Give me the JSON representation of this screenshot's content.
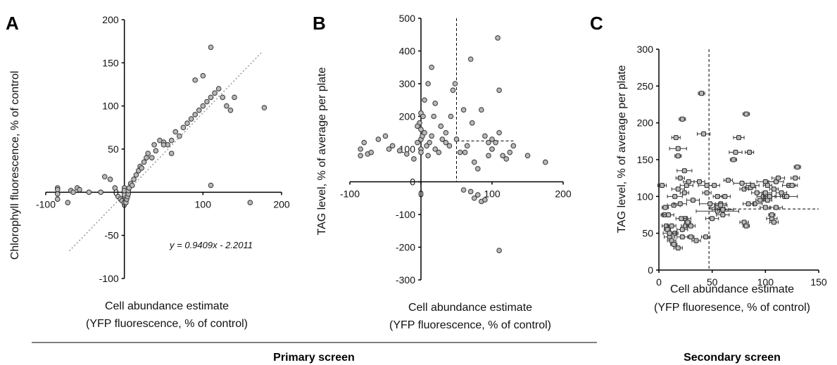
{
  "figure": {
    "left_group_label": "Primary screen",
    "right_group_label": "Secondary screen"
  },
  "chart_data": [
    {
      "panel": "A",
      "type": "scatter",
      "xlabel_line1": "Cell abundance estimate",
      "xlabel_line2": "(YFP fluorescence, % of control)",
      "ylabel": "Chlorophyll fluorescence, % of control",
      "xlim": [
        -100,
        200
      ],
      "ylim": [
        -100,
        200
      ],
      "x_ticks": [
        "-100",
        "0",
        "100",
        "200"
      ],
      "y_ticks": [
        "-100",
        "-50",
        "0",
        "50",
        "100",
        "150",
        "200"
      ],
      "x_tick_values": [
        -100,
        0,
        100,
        200
      ],
      "y_tick_values": [
        -100,
        -50,
        0,
        50,
        100,
        150,
        200
      ],
      "trendline": {
        "slope": 0.9409,
        "intercept": -2.2011,
        "x_range": [
          -70,
          175
        ]
      },
      "equation": "y = 0.9409x - 2.2011",
      "grid": false,
      "series": [
        {
          "x": [
            -85,
            -85,
            -85,
            -85,
            -72,
            -68,
            -65,
            -60,
            -57,
            -45,
            -30,
            -25,
            -18,
            -12,
            -8,
            -5,
            -3,
            0,
            0,
            0,
            0,
            0,
            0,
            2,
            2,
            3,
            4,
            5,
            5,
            6,
            8,
            10,
            12,
            15,
            18,
            20,
            22,
            25,
            28,
            30,
            35,
            38,
            40,
            45,
            50,
            55,
            60,
            65,
            70,
            75,
            80,
            85,
            90,
            95,
            100,
            105,
            110,
            115,
            120,
            125,
            130,
            135,
            140,
            110,
            100,
            90,
            60,
            50,
            110,
            178,
            160
          ],
          "y": [
            5,
            3,
            -2,
            -8,
            -12,
            2,
            0,
            5,
            3,
            0,
            0,
            18,
            15,
            5,
            -5,
            -8,
            -10,
            -12,
            -5,
            0,
            5,
            -3,
            2,
            -10,
            -12,
            -8,
            -5,
            -2,
            2,
            5,
            10,
            8,
            15,
            20,
            25,
            30,
            28,
            35,
            40,
            45,
            40,
            55,
            48,
            60,
            58,
            55,
            60,
            70,
            65,
            75,
            80,
            85,
            90,
            95,
            100,
            105,
            110,
            115,
            120,
            110,
            100,
            95,
            110,
            168,
            135,
            130,
            45,
            55,
            8,
            98,
            -12
          ]
        }
      ]
    },
    {
      "panel": "B",
      "type": "scatter",
      "xlabel_line1": "Cell abundance estimate",
      "xlabel_line2": "(YFP fluorescence, % of control)",
      "ylabel": "TAG level, % of average per plate",
      "xlim": [
        -100,
        200
      ],
      "ylim": [
        -300,
        500
      ],
      "x_ticks": [
        "-100",
        "0",
        "100",
        "200"
      ],
      "y_ticks": [
        "-300",
        "-200",
        "-100",
        "0",
        "100",
        "200",
        "300",
        "400",
        "500"
      ],
      "x_tick_values": [
        -100,
        0,
        100,
        200
      ],
      "y_tick_values": [
        -300,
        -200,
        -100,
        0,
        100,
        200,
        300,
        400,
        500
      ],
      "threshold_x": 50,
      "threshold_y": 125,
      "threshold_y_x_range": [
        50,
        130
      ],
      "grid": false,
      "series": [
        {
          "x": [
            -85,
            -85,
            -80,
            -75,
            -70,
            -60,
            -50,
            -45,
            -40,
            -30,
            -20,
            -10,
            -5,
            -2,
            0,
            0,
            0,
            0,
            0,
            2,
            3,
            5,
            5,
            8,
            10,
            10,
            12,
            15,
            18,
            20,
            20,
            25,
            28,
            30,
            35,
            40,
            42,
            45,
            48,
            50,
            55,
            60,
            65,
            70,
            72,
            75,
            80,
            85,
            90,
            95,
            100,
            100,
            105,
            108,
            110,
            115,
            120,
            125,
            130,
            60,
            70,
            75,
            80,
            85,
            110,
            110,
            150,
            175,
            100,
            95,
            90,
            62,
            35,
            15,
            -5
          ],
          "y": [
            100,
            80,
            120,
            85,
            90,
            130,
            140,
            100,
            110,
            95,
            85,
            70,
            120,
            180,
            210,
            160,
            130,
            100,
            90,
            140,
            200,
            250,
            150,
            110,
            80,
            300,
            120,
            140,
            200,
            100,
            240,
            90,
            170,
            130,
            150,
            110,
            200,
            280,
            300,
            130,
            90,
            220,
            110,
            375,
            180,
            -50,
            -40,
            -60,
            -55,
            80,
            100,
            130,
            120,
            440,
            -210,
            80,
            70,
            90,
            110,
            -25,
            -30,
            60,
            40,
            220,
            150,
            280,
            80,
            60,
            100,
            120,
            140,
            90,
            120,
            350,
            170
          ]
        }
      ]
    },
    {
      "panel": "C",
      "type": "scatter",
      "xlabel_line1": "Cell abundance estimate",
      "xlabel_line2": "(YFP fluoresence, % of control)",
      "ylabel": "TAG level, % of average per plate",
      "xlim": [
        0,
        150
      ],
      "ylim": [
        0,
        300
      ],
      "x_ticks": [
        "0",
        "50",
        "100",
        "150"
      ],
      "y_ticks": [
        "0",
        "50",
        "100",
        "150",
        "200",
        "250",
        "300"
      ],
      "x_tick_values": [
        0,
        50,
        100,
        150
      ],
      "y_tick_values": [
        0,
        50,
        100,
        150,
        200,
        250,
        300
      ],
      "threshold_x": 47,
      "threshold_y": 83,
      "threshold_y_x_range": [
        47,
        150
      ],
      "grid": false,
      "series": [
        {
          "x": [
            5,
            7,
            8,
            10,
            12,
            14,
            15,
            16,
            18,
            18,
            20,
            20,
            22,
            22,
            24,
            25,
            25,
            26,
            28,
            30,
            30,
            32,
            35,
            38,
            40,
            42,
            45,
            45,
            48,
            50,
            52,
            55,
            55,
            58,
            60,
            60,
            62,
            65,
            70,
            72,
            75,
            78,
            80,
            82,
            85,
            86,
            88,
            90,
            92,
            95,
            98,
            100,
            100,
            102,
            104,
            106,
            108,
            110,
            112,
            115,
            118,
            120,
            122,
            125,
            128,
            130,
            3,
            6,
            9,
            12,
            15,
            18,
            21,
            24,
            27,
            22,
            18,
            14,
            10,
            44,
            55,
            58,
            60,
            80,
            82,
            84,
            100,
            102,
            104,
            106,
            108,
            110
          ],
          "y": [
            75,
            60,
            55,
            45,
            40,
            88,
            100,
            180,
            165,
            155,
            125,
            90,
            55,
            205,
            135,
            70,
            60,
            115,
            120,
            60,
            45,
            95,
            40,
            120,
            240,
            185,
            115,
            105,
            90,
            70,
            115,
            100,
            85,
            90,
            82,
            75,
            100,
            122,
            150,
            160,
            180,
            118,
            110,
            212,
            160,
            112,
            115,
            90,
            105,
            95,
            100,
            120,
            85,
            115,
            100,
            70,
            110,
            120,
            125,
            105,
            100,
            100,
            115,
            115,
            125,
            140,
            115,
            85,
            75,
            60,
            50,
            110,
            70,
            105,
            65,
            45,
            30,
            35,
            50,
            45,
            80,
            88,
            82,
            65,
            60,
            90,
            105,
            95,
            100,
            75,
            65,
            85
          ],
          "err": [
            3,
            4,
            3,
            5,
            4,
            6,
            7,
            4,
            8,
            3,
            4,
            6,
            5,
            3,
            7,
            5,
            4,
            6,
            5,
            4,
            3,
            6,
            4,
            5,
            3,
            6,
            8,
            4,
            10,
            6,
            5,
            4,
            7,
            5,
            10,
            6,
            5,
            4,
            3,
            6,
            5,
            8,
            4,
            3,
            4,
            5,
            6,
            7,
            5,
            4,
            6,
            8,
            5,
            4,
            6,
            5,
            4,
            7,
            6,
            5,
            4,
            10,
            6,
            5,
            4,
            3,
            4,
            3,
            5,
            4,
            3,
            6,
            5,
            4,
            3,
            5,
            4,
            3,
            6,
            4,
            20,
            6,
            5,
            4,
            3,
            5,
            6,
            4,
            5,
            3,
            4,
            6
          ]
        }
      ]
    }
  ],
  "panel_labels": [
    "A",
    "B",
    "C"
  ]
}
